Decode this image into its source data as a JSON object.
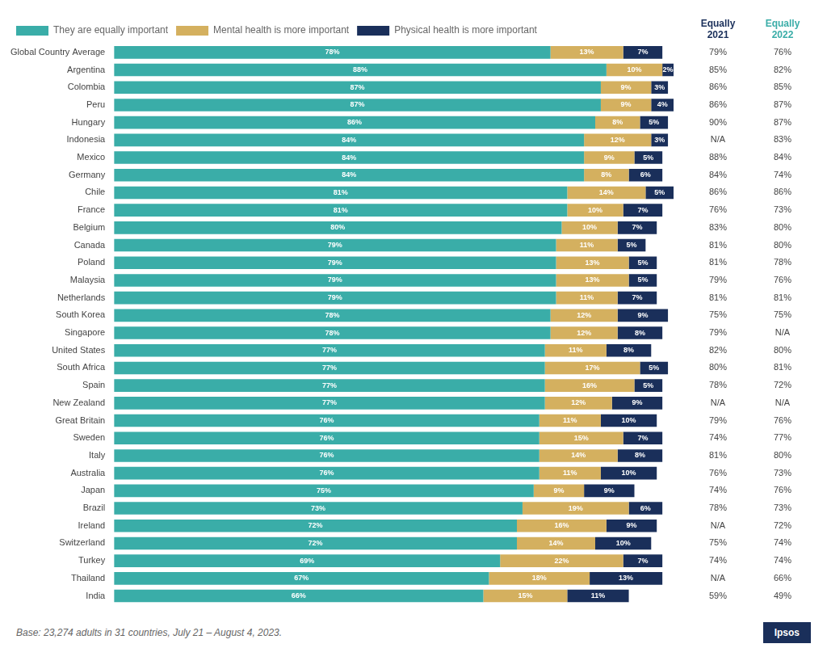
{
  "chart_data": {
    "type": "bar",
    "orientation": "horizontal",
    "stacked": true,
    "data_labels": true,
    "legend": "top",
    "grid": false,
    "tick_labels": "y",
    "xlim": [
      0,
      100
    ],
    "categories": [
      "Global Country Average",
      "Argentina",
      "Colombia",
      "Peru",
      "Hungary",
      "Indonesia",
      "Mexico",
      "Germany",
      "Chile",
      "France",
      "Belgium",
      "Canada",
      "Poland",
      "Malaysia",
      "Netherlands",
      "South Korea",
      "Singapore",
      "United States",
      "South Africa",
      "Spain",
      "New Zealand",
      "Great Britain",
      "Sweden",
      "Italy",
      "Australia",
      "Japan",
      "Brazil",
      "Ireland",
      "Switzerland",
      "Turkey",
      "Thailand",
      "India"
    ],
    "series": [
      {
        "name": "They are equally important",
        "color": "#3aada8",
        "values": [
          78,
          88,
          87,
          87,
          86,
          84,
          84,
          84,
          81,
          81,
          80,
          79,
          79,
          79,
          79,
          78,
          78,
          77,
          77,
          77,
          77,
          76,
          76,
          76,
          76,
          75,
          73,
          72,
          72,
          69,
          67,
          66
        ],
        "value_labels": [
          "78%",
          "88%",
          "87%",
          "87%",
          "86%",
          "84%",
          "84%",
          "84%",
          "81%",
          "81%",
          "80%",
          "79%",
          "79%",
          "79%",
          "79%",
          "78%",
          "78%",
          "77%",
          "77%",
          "77%",
          "77%",
          "76%",
          "76%",
          "76%",
          "76%",
          "75%",
          "73%",
          "72%",
          "72%",
          "69%",
          "67%",
          "66%"
        ]
      },
      {
        "name": "Mental health is more important",
        "color": "#d4b05f",
        "values": [
          13,
          10,
          9,
          9,
          8,
          12,
          9,
          8,
          14,
          10,
          10,
          11,
          13,
          13,
          11,
          12,
          12,
          11,
          17,
          16,
          12,
          11,
          15,
          14,
          11,
          9,
          19,
          16,
          14,
          22,
          18,
          15
        ],
        "value_labels": [
          "13%",
          "10%",
          "9%",
          "9%",
          "8%",
          "12%",
          "9%",
          "8%",
          "14%",
          "10%",
          "10%",
          "11%",
          "13%",
          "13%",
          "11%",
          "12%",
          "12%",
          "11%",
          "17%",
          "16%",
          "12%",
          "11%",
          "15%",
          "14%",
          "11%",
          "9%",
          "19%",
          "16%",
          "14%",
          "22%",
          "18%",
          "15%"
        ]
      },
      {
        "name": "Physical health is more important",
        "color": "#1a2f5a",
        "values": [
          7,
          2,
          3,
          4,
          5,
          3,
          5,
          6,
          5,
          7,
          7,
          5,
          5,
          5,
          7,
          9,
          8,
          8,
          5,
          5,
          9,
          10,
          7,
          8,
          10,
          9,
          6,
          9,
          10,
          7,
          13,
          11
        ],
        "value_labels": [
          "7%",
          "2%",
          "3%",
          "4%",
          "5%",
          "3%",
          "5%",
          "6%",
          "5%",
          "7%",
          "7%",
          "5%",
          "5%",
          "5%",
          "7%",
          "9%",
          "8%",
          "8%",
          "5%",
          "5%",
          "9%",
          "10%",
          "7%",
          "8%",
          "10%",
          "9%",
          "6%",
          "9%",
          "10%",
          "7%",
          "13%",
          "11%"
        ]
      }
    ],
    "side_columns": [
      {
        "name": "Equally 2021",
        "color": "#1a2f5a",
        "values": [
          "79%",
          "85%",
          "86%",
          "86%",
          "90%",
          "N/A",
          "88%",
          "84%",
          "86%",
          "76%",
          "83%",
          "81%",
          "81%",
          "79%",
          "81%",
          "75%",
          "79%",
          "82%",
          "80%",
          "78%",
          "N/A",
          "79%",
          "74%",
          "81%",
          "76%",
          "74%",
          "78%",
          "N/A",
          "75%",
          "74%",
          "N/A",
          "59%"
        ]
      },
      {
        "name": "Equally 2022",
        "color": "#3aada8",
        "values": [
          "76%",
          "82%",
          "85%",
          "87%",
          "87%",
          "83%",
          "84%",
          "74%",
          "86%",
          "73%",
          "80%",
          "80%",
          "78%",
          "76%",
          "81%",
          "75%",
          "N/A",
          "80%",
          "81%",
          "72%",
          "N/A",
          "76%",
          "77%",
          "80%",
          "73%",
          "76%",
          "73%",
          "72%",
          "74%",
          "74%",
          "66%",
          "49%"
        ]
      }
    ],
    "annotations": [
      "Base: 23,274 adults in 31 countries, July 21 – August 4, 2023.",
      "Ipsos"
    ]
  }
}
